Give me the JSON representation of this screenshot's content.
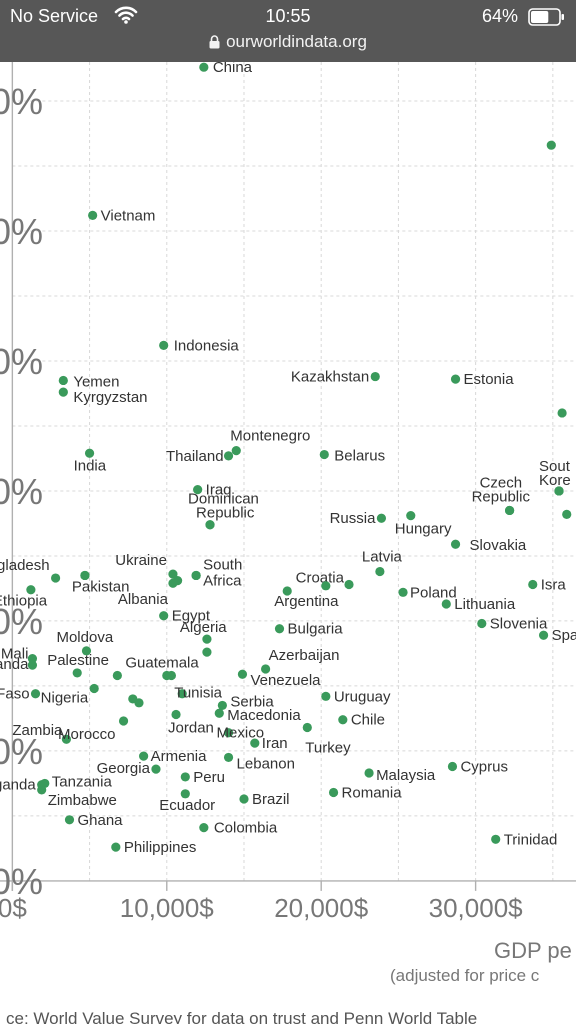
{
  "status_bar": {
    "carrier": "No Service",
    "time": "10:55",
    "battery": "64%",
    "url": "ourworldindata.org",
    "battery_level": 0.64
  },
  "chart_data": {
    "type": "scatter",
    "xlabel": "GDP pe",
    "xlabel_sub": "(adjusted for price c",
    "source": "ce: World Value Survey for data on trust and Penn World Table",
    "x_ticks": [
      {
        "value": 0,
        "label": "0$"
      },
      {
        "value": 10000,
        "label": "10,000$"
      },
      {
        "value": 20000,
        "label": "20,000$"
      },
      {
        "value": 30000,
        "label": "30,000$"
      }
    ],
    "y_ticks": [
      {
        "value": 0,
        "label": "0%"
      },
      {
        "value": 10,
        "label": "0%"
      },
      {
        "value": 20,
        "label": "0%"
      },
      {
        "value": 30,
        "label": "0%"
      },
      {
        "value": 40,
        "label": "0%"
      },
      {
        "value": 50,
        "label": "0%"
      },
      {
        "value": 60,
        "label": "0%"
      }
    ],
    "xlim": [
      -800,
      36500
    ],
    "ylim": [
      -0.7,
      63
    ],
    "grid": true,
    "point_color": "#3a9a5b",
    "points": [
      {
        "label": "China",
        "x": 12400,
        "y": 62.6,
        "lx": 9,
        "ly": 5,
        "anchor": "start"
      },
      {
        "label": "Vietnam",
        "x": 5200,
        "y": 51.2,
        "lx": 8,
        "ly": 5,
        "anchor": "start"
      },
      {
        "label": "",
        "x": 34900,
        "y": 56.6,
        "lx": 8,
        "ly": 5,
        "anchor": "start"
      },
      {
        "label": "Indonesia",
        "x": 9800,
        "y": 41.2,
        "lx": 10,
        "ly": 5,
        "anchor": "start"
      },
      {
        "label": "Kazakhstan",
        "x": 23500,
        "y": 38.8,
        "lx": -6,
        "ly": 5,
        "anchor": "end"
      },
      {
        "label": "Estonia",
        "x": 28700,
        "y": 38.6,
        "lx": 8,
        "ly": 5,
        "anchor": "start"
      },
      {
        "label": "Yemen",
        "x": 3300,
        "y": 38.5,
        "lx": 10,
        "ly": 6,
        "anchor": "start"
      },
      {
        "label": "Kyrgyzstan",
        "x": 3300,
        "y": 37.6,
        "lx": 10,
        "ly": 10,
        "anchor": "start"
      },
      {
        "label": "",
        "x": 35600,
        "y": 36.0,
        "lx": 8,
        "ly": 5,
        "anchor": "start"
      },
      {
        "label": "Montenegro",
        "x": 14500,
        "y": 33.1,
        "lx": -6,
        "ly": -10,
        "anchor": "start"
      },
      {
        "label": "Thailand",
        "x": 14000,
        "y": 32.7,
        "lx": -5,
        "ly": 5,
        "anchor": "end"
      },
      {
        "label": "Belarus",
        "x": 20200,
        "y": 32.8,
        "lx": 10,
        "ly": 6,
        "anchor": "start"
      },
      {
        "label": "India",
        "x": 5000,
        "y": 32.9,
        "lx": -16,
        "ly": 17,
        "anchor": "start"
      },
      {
        "label": "Iraq",
        "x": 12000,
        "y": 30.1,
        "lx": 8,
        "ly": 5,
        "anchor": "start"
      },
      {
        "label": "",
        "x": 35400,
        "y": 30.0,
        "lx": 8,
        "ly": 5,
        "anchor": "start"
      },
      {
        "label": "Sout",
        "x": 35400,
        "y": 30.0,
        "lx": -20,
        "ly": -20,
        "anchor": "start"
      },
      {
        "label": "Kore",
        "x": 35400,
        "y": 30.0,
        "lx": -20,
        "ly": -6,
        "anchor": "start"
      },
      {
        "label": "Czech",
        "x": 32200,
        "y": 28.5,
        "lx": -30,
        "ly": -23,
        "anchor": "start"
      },
      {
        "label": "Republic",
        "x": 32200,
        "y": 28.5,
        "lx": -38,
        "ly": -9,
        "anchor": "start"
      },
      {
        "label": "",
        "x": 35900,
        "y": 28.2,
        "lx": 8,
        "ly": 5,
        "anchor": "start"
      },
      {
        "label": "Hungary",
        "x": 25800,
        "y": 28.1,
        "lx": -16,
        "ly": 18,
        "anchor": "start"
      },
      {
        "label": "Russia",
        "x": 23900,
        "y": 27.9,
        "lx": -6,
        "ly": 5,
        "anchor": "end"
      },
      {
        "label": "Dominican",
        "x": 12800,
        "y": 27.4,
        "lx": -22,
        "ly": -21,
        "anchor": "start"
      },
      {
        "label": "Republic",
        "x": 12800,
        "y": 27.4,
        "lx": -14,
        "ly": -7,
        "anchor": "start"
      },
      {
        "label": "Slovakia",
        "x": 28700,
        "y": 25.9,
        "lx": 14,
        "ly": 6,
        "anchor": "start"
      },
      {
        "label": "Latvia",
        "x": 23800,
        "y": 23.8,
        "lx": -18,
        "ly": -10,
        "anchor": "start"
      },
      {
        "label": "Croatia",
        "x": 21800,
        "y": 22.8,
        "lx": -5,
        "ly": -2,
        "anchor": "end"
      },
      {
        "label": "",
        "x": 20300,
        "y": 22.7,
        "lx": 8,
        "ly": 5,
        "anchor": "start"
      },
      {
        "label": "Ukraine",
        "x": 10400,
        "y": 23.6,
        "lx": -6,
        "ly": -9,
        "anchor": "end"
      },
      {
        "label": "",
        "x": 10700,
        "y": 23.1,
        "lx": 8,
        "ly": 5,
        "anchor": "start"
      },
      {
        "label": "South",
        "x": 11900,
        "y": 23.5,
        "lx": 7,
        "ly": -6,
        "anchor": "start"
      },
      {
        "label": "Africa",
        "x": 11900,
        "y": 23.5,
        "lx": 7,
        "ly": 10,
        "anchor": "start"
      },
      {
        "label": "Bangladesh",
        "x": 2800,
        "y": 23.3,
        "lx": -6,
        "ly": -8,
        "anchor": "end"
      },
      {
        "label": "",
        "x": 4700,
        "y": 23.5,
        "lx": 8,
        "ly": 5,
        "anchor": "start"
      },
      {
        "label": "Pakistan",
        "x": 4700,
        "y": 23.5,
        "lx": -13,
        "ly": 16,
        "anchor": "start"
      },
      {
        "label": "Ethiopia",
        "x": 1200,
        "y": 22.4,
        "lx": -38,
        "ly": 16,
        "anchor": "start"
      },
      {
        "label": "Albania",
        "x": 10400,
        "y": 22.9,
        "lx": -5,
        "ly": 21,
        "anchor": "end"
      },
      {
        "label": "Argentina",
        "x": 17800,
        "y": 22.3,
        "lx": -13,
        "ly": 15,
        "anchor": "start"
      },
      {
        "label": "Poland",
        "x": 25300,
        "y": 22.2,
        "lx": 7,
        "ly": 5,
        "anchor": "start"
      },
      {
        "label": "Isra",
        "x": 33700,
        "y": 22.8,
        "lx": 8,
        "ly": 5,
        "anchor": "start"
      },
      {
        "label": "Lithuania",
        "x": 28100,
        "y": 21.3,
        "lx": 8,
        "ly": 5,
        "anchor": "start"
      },
      {
        "label": "Egypt",
        "x": 9800,
        "y": 20.4,
        "lx": 8,
        "ly": 5,
        "anchor": "start"
      },
      {
        "label": "Slovenia",
        "x": 30400,
        "y": 19.8,
        "lx": 8,
        "ly": 5,
        "anchor": "start"
      },
      {
        "label": "Spa",
        "x": 34400,
        "y": 18.9,
        "lx": 8,
        "ly": 5,
        "anchor": "start"
      },
      {
        "label": "Bulgaria",
        "x": 17300,
        "y": 19.4,
        "lx": 8,
        "ly": 5,
        "anchor": "start"
      },
      {
        "label": "Algeria",
        "x": 12600,
        "y": 18.6,
        "lx": -27,
        "ly": -7,
        "anchor": "start"
      },
      {
        "label": "",
        "x": 12600,
        "y": 17.6,
        "lx": 8,
        "ly": 5,
        "anchor": "start"
      },
      {
        "label": "Moldova",
        "x": 4800,
        "y": 17.7,
        "lx": -30,
        "ly": -9,
        "anchor": "start"
      },
      {
        "label": "Mali",
        "x": 1300,
        "y": 17.1,
        "lx": -4,
        "ly": 0,
        "anchor": "end"
      },
      {
        "label": "Rwanda",
        "x": 1300,
        "y": 16.6,
        "lx": -4,
        "ly": 4,
        "anchor": "end"
      },
      {
        "label": "Palestine",
        "x": 4200,
        "y": 16.0,
        "lx": -30,
        "ly": -8,
        "anchor": "start"
      },
      {
        "label": "Guatemala",
        "x": 6800,
        "y": 15.8,
        "lx": 8,
        "ly": -8,
        "anchor": "start"
      },
      {
        "label": "",
        "x": 10300,
        "y": 15.8,
        "lx": 8,
        "ly": 5,
        "anchor": "start"
      },
      {
        "label": "",
        "x": 10000,
        "y": 15.8,
        "lx": 8,
        "ly": 5,
        "anchor": "start"
      },
      {
        "label": "Azerbaijan",
        "x": 16400,
        "y": 16.3,
        "lx": 3,
        "ly": -9,
        "anchor": "start"
      },
      {
        "label": "Venezuela",
        "x": 14900,
        "y": 15.9,
        "lx": 8,
        "ly": 11,
        "anchor": "start"
      },
      {
        "label": "Burkina Faso",
        "x": 1500,
        "y": 14.4,
        "lx": -6,
        "ly": 5,
        "anchor": "end"
      },
      {
        "label": "Nigeria",
        "x": 5300,
        "y": 14.8,
        "lx": -6,
        "ly": 14,
        "anchor": "end"
      },
      {
        "label": "",
        "x": 7800,
        "y": 14.0,
        "lx": 8,
        "ly": 5,
        "anchor": "start"
      },
      {
        "label": "",
        "x": 8200,
        "y": 13.7,
        "lx": 8,
        "ly": 5,
        "anchor": "start"
      },
      {
        "label": "Tunisia",
        "x": 11000,
        "y": 14.4,
        "lx": -8,
        "ly": 4,
        "anchor": "start"
      },
      {
        "label": "Serbia",
        "x": 13600,
        "y": 13.5,
        "lx": 8,
        "ly": 1,
        "anchor": "start"
      },
      {
        "label": "Macedonia",
        "x": 13400,
        "y": 12.9,
        "lx": 8,
        "ly": 7,
        "anchor": "start"
      },
      {
        "label": "Uruguay",
        "x": 20300,
        "y": 14.2,
        "lx": 8,
        "ly": 5,
        "anchor": "start"
      },
      {
        "label": "Jordan",
        "x": 10600,
        "y": 12.8,
        "lx": -8,
        "ly": 18,
        "anchor": "start"
      },
      {
        "label": "Chile",
        "x": 21400,
        "y": 12.4,
        "lx": 8,
        "ly": 5,
        "anchor": "start"
      },
      {
        "label": "Mexico",
        "x": 14000,
        "y": 11.4,
        "lx": -12,
        "ly": 5,
        "anchor": "start"
      },
      {
        "label": "Turkey",
        "x": 19100,
        "y": 11.8,
        "lx": -2,
        "ly": 25,
        "anchor": "start"
      },
      {
        "label": "Zambia",
        "x": 3500,
        "y": 10.9,
        "lx": -4,
        "ly": -4,
        "anchor": "end"
      },
      {
        "label": "Morocco",
        "x": 7200,
        "y": 12.3,
        "lx": -8,
        "ly": 18,
        "anchor": "end"
      },
      {
        "label": "Iran",
        "x": 15700,
        "y": 10.6,
        "lx": 7,
        "ly": 5,
        "anchor": "start"
      },
      {
        "label": "Lebanon",
        "x": 14000,
        "y": 9.5,
        "lx": 8,
        "ly": 11,
        "anchor": "start"
      },
      {
        "label": "Armenia",
        "x": 8500,
        "y": 9.6,
        "lx": 7,
        "ly": 5,
        "anchor": "start"
      },
      {
        "label": "Georgia",
        "x": 9300,
        "y": 8.6,
        "lx": -6,
        "ly": 4,
        "anchor": "end"
      },
      {
        "label": "Peru",
        "x": 11200,
        "y": 8.0,
        "lx": 8,
        "ly": 5,
        "anchor": "start"
      },
      {
        "label": "Malaysia",
        "x": 23100,
        "y": 8.3,
        "lx": 7,
        "ly": 7,
        "anchor": "start"
      },
      {
        "label": "Cyprus",
        "x": 28500,
        "y": 8.8,
        "lx": 8,
        "ly": 5,
        "anchor": "start"
      },
      {
        "label": "Uganda",
        "x": 1900,
        "y": 7.4,
        "lx": -6,
        "ly": 5,
        "anchor": "end"
      },
      {
        "label": "Tanzania",
        "x": 2100,
        "y": 7.5,
        "lx": 7,
        "ly": 3,
        "anchor": "start"
      },
      {
        "label": "Zimbabwe",
        "x": 1900,
        "y": 7.0,
        "lx": 6,
        "ly": 15,
        "anchor": "start"
      },
      {
        "label": "Ecuador",
        "x": 11200,
        "y": 6.7,
        "lx": -26,
        "ly": 16,
        "anchor": "start"
      },
      {
        "label": "Brazil",
        "x": 15000,
        "y": 6.3,
        "lx": 8,
        "ly": 5,
        "anchor": "start"
      },
      {
        "label": "Romania",
        "x": 20800,
        "y": 6.8,
        "lx": 8,
        "ly": 5,
        "anchor": "start"
      },
      {
        "label": "Ghana",
        "x": 3700,
        "y": 4.7,
        "lx": 8,
        "ly": 5,
        "anchor": "start"
      },
      {
        "label": "Colombia",
        "x": 12400,
        "y": 4.1,
        "lx": 10,
        "ly": 5,
        "anchor": "start"
      },
      {
        "label": "Trinidad",
        "x": 31300,
        "y": 3.2,
        "lx": 8,
        "ly": 5,
        "anchor": "start"
      },
      {
        "label": "Philippines",
        "x": 6700,
        "y": 2.6,
        "lx": 8,
        "ly": 5,
        "anchor": "start"
      }
    ]
  }
}
